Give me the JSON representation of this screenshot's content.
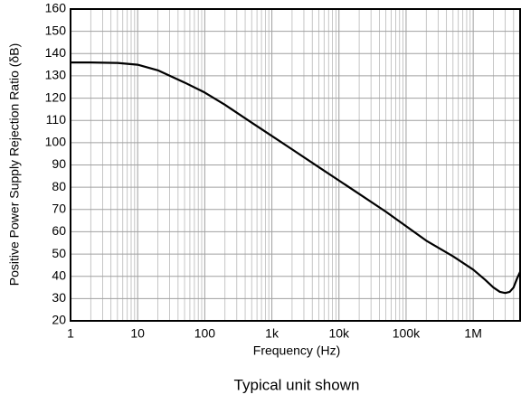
{
  "chart_data": {
    "type": "line",
    "xlabel": "Frequency (Hz)",
    "ylabel": "Positive Power Supply Rejection Ratio (δB)",
    "caption": "Typical unit shown",
    "xscale": "log",
    "grid": true,
    "minor_grid": true,
    "xlim": [
      1,
      5000000
    ],
    "ylim": [
      20,
      160
    ],
    "xticks": [
      1,
      10,
      100,
      {
        "value": 1000,
        "label": "1k"
      },
      {
        "value": 10000,
        "label": "10k"
      },
      {
        "value": 100000,
        "label": "100k"
      },
      {
        "value": 1000000,
        "label": "1M"
      }
    ],
    "yticks": [
      20,
      30,
      40,
      50,
      60,
      70,
      80,
      90,
      100,
      110,
      120,
      130,
      140,
      150,
      160
    ],
    "x": [
      1,
      2,
      5,
      10,
      20,
      50,
      100,
      200,
      500,
      1000,
      2000,
      5000,
      10000,
      20000,
      50000,
      100000,
      200000,
      500000,
      1000000,
      1500000,
      2000000,
      2500000,
      3000000,
      3500000,
      4000000,
      4500000,
      5000000
    ],
    "series": [
      {
        "color": "#000000",
        "values": [
          136,
          136,
          135.8,
          135,
          132.5,
          127,
          122.5,
          117,
          109,
          103,
          97,
          89,
          83,
          77,
          69,
          62.5,
          56,
          49,
          43,
          38.5,
          35,
          33,
          32.5,
          33,
          35,
          39,
          42
        ]
      }
    ]
  }
}
